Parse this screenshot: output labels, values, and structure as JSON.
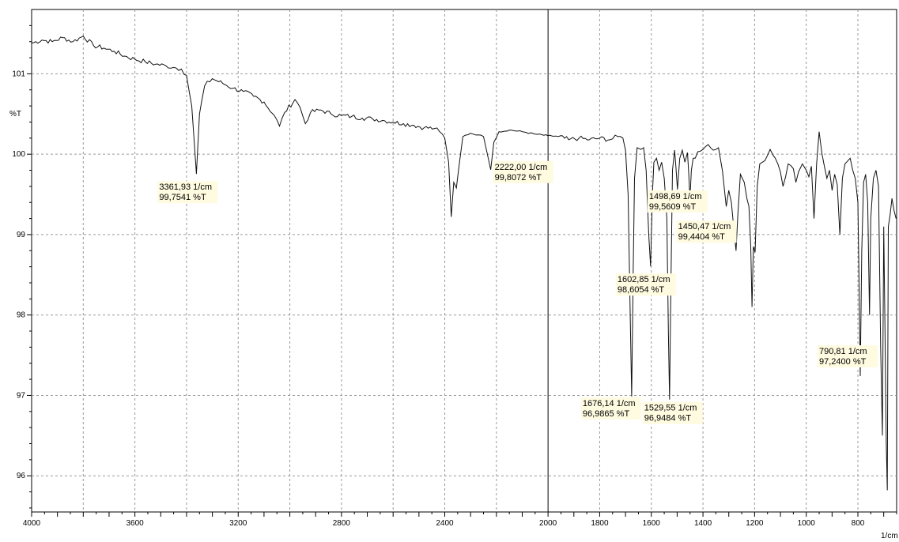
{
  "chart_data": {
    "type": "line",
    "title": "",
    "ylabel": "%T",
    "xlabel": "1/cm",
    "xlim": [
      4000,
      650
    ],
    "ylim": [
      95.55,
      101.8
    ],
    "x_ticks": [
      4000,
      3600,
      3200,
      2800,
      2400,
      2000,
      1600,
      1400,
      1200,
      1000,
      800
    ],
    "x_tick_labels": [
      "4000",
      "3600",
      "3200",
      "2800",
      "2400",
      "2000",
      "1600",
      "1400",
      "1200",
      "1000",
      "800"
    ],
    "x_tick_label_1800": "1800",
    "y_ticks": [
      96,
      97,
      98,
      99,
      100,
      101
    ],
    "y_tick_labels": [
      "96",
      "97",
      "98",
      "99",
      "100",
      "101"
    ],
    "grid": true,
    "cursor_x": 2000,
    "series": [
      {
        "points": [
          [
            4000,
            101.38
          ],
          [
            3960,
            101.42
          ],
          [
            3920,
            101.4
          ],
          [
            3880,
            101.45
          ],
          [
            3840,
            101.4
          ],
          [
            3800,
            101.47
          ],
          [
            3760,
            101.35
          ],
          [
            3720,
            101.32
          ],
          [
            3680,
            101.28
          ],
          [
            3640,
            101.22
          ],
          [
            3600,
            101.18
          ],
          [
            3560,
            101.15
          ],
          [
            3520,
            101.12
          ],
          [
            3480,
            101.1
          ],
          [
            3450,
            101.08
          ],
          [
            3420,
            101.06
          ],
          [
            3400,
            100.98
          ],
          [
            3380,
            100.6
          ],
          [
            3361.93,
            99.7541
          ],
          [
            3350,
            100.5
          ],
          [
            3330,
            100.85
          ],
          [
            3300,
            100.94
          ],
          [
            3260,
            100.88
          ],
          [
            3220,
            100.82
          ],
          [
            3180,
            100.78
          ],
          [
            3140,
            100.72
          ],
          [
            3100,
            100.65
          ],
          [
            3060,
            100.48
          ],
          [
            3040,
            100.35
          ],
          [
            3020,
            100.52
          ],
          [
            2980,
            100.68
          ],
          [
            2960,
            100.58
          ],
          [
            2940,
            100.38
          ],
          [
            2920,
            100.52
          ],
          [
            2880,
            100.55
          ],
          [
            2840,
            100.5
          ],
          [
            2800,
            100.48
          ],
          [
            2760,
            100.47
          ],
          [
            2720,
            100.45
          ],
          [
            2680,
            100.44
          ],
          [
            2640,
            100.42
          ],
          [
            2600,
            100.4
          ],
          [
            2560,
            100.38
          ],
          [
            2520,
            100.36
          ],
          [
            2480,
            100.33
          ],
          [
            2440,
            100.32
          ],
          [
            2420,
            100.28
          ],
          [
            2400,
            100.2
          ],
          [
            2385,
            99.9
          ],
          [
            2375,
            99.22
          ],
          [
            2365,
            99.65
          ],
          [
            2355,
            99.58
          ],
          [
            2345,
            99.85
          ],
          [
            2330,
            100.22
          ],
          [
            2300,
            100.26
          ],
          [
            2270,
            100.24
          ],
          [
            2250,
            100.22
          ],
          [
            2235,
            100.0
          ],
          [
            2222,
            99.8072
          ],
          [
            2210,
            100.15
          ],
          [
            2190,
            100.28
          ],
          [
            2150,
            100.3
          ],
          [
            2100,
            100.28
          ],
          [
            2050,
            100.25
          ],
          [
            2000,
            100.23
          ],
          [
            1960,
            100.22
          ],
          [
            1920,
            100.18
          ],
          [
            1880,
            100.2
          ],
          [
            1840,
            100.18
          ],
          [
            1800,
            100.2
          ],
          [
            1760,
            100.18
          ],
          [
            1730,
            100.22
          ],
          [
            1710,
            100.2
          ],
          [
            1700,
            100.05
          ],
          [
            1690,
            99.5
          ],
          [
            1683,
            98.2
          ],
          [
            1676.14,
            96.9865
          ],
          [
            1670,
            98.6
          ],
          [
            1665,
            99.7
          ],
          [
            1655,
            100.08
          ],
          [
            1640,
            100.06
          ],
          [
            1630,
            100.08
          ],
          [
            1620,
            99.8
          ],
          [
            1610,
            99.0
          ],
          [
            1602.85,
            98.6054
          ],
          [
            1596,
            99.5
          ],
          [
            1590,
            99.9
          ],
          [
            1580,
            99.95
          ],
          [
            1570,
            99.8
          ],
          [
            1560,
            99.9
          ],
          [
            1550,
            99.7
          ],
          [
            1540,
            99.2
          ],
          [
            1534,
            97.8
          ],
          [
            1529.55,
            96.9484
          ],
          [
            1525,
            98.2
          ],
          [
            1518,
            99.8
          ],
          [
            1510,
            100.05
          ],
          [
            1505,
            99.85
          ],
          [
            1498.69,
            99.5609
          ],
          [
            1490,
            99.95
          ],
          [
            1480,
            100.05
          ],
          [
            1470,
            99.9
          ],
          [
            1460,
            100.02
          ],
          [
            1455,
            99.75
          ],
          [
            1450.47,
            99.4404
          ],
          [
            1445,
            99.8
          ],
          [
            1438,
            99.95
          ],
          [
            1430,
            99.95
          ],
          [
            1420,
            100.03
          ],
          [
            1400,
            100.06
          ],
          [
            1380,
            100.12
          ],
          [
            1360,
            100.05
          ],
          [
            1340,
            100.08
          ],
          [
            1325,
            99.8
          ],
          [
            1310,
            99.35
          ],
          [
            1300,
            99.55
          ],
          [
            1290,
            99.4
          ],
          [
            1280,
            99.05
          ],
          [
            1272,
            98.8
          ],
          [
            1265,
            99.25
          ],
          [
            1255,
            99.75
          ],
          [
            1240,
            99.65
          ],
          [
            1230,
            99.45
          ],
          [
            1222,
            99.35
          ],
          [
            1215,
            98.85
          ],
          [
            1210,
            98.1
          ],
          [
            1205,
            98.85
          ],
          [
            1198,
            98.78
          ],
          [
            1190,
            99.6
          ],
          [
            1180,
            99.88
          ],
          [
            1160,
            99.92
          ],
          [
            1140,
            100.06
          ],
          [
            1120,
            99.95
          ],
          [
            1110,
            99.88
          ],
          [
            1100,
            99.78
          ],
          [
            1090,
            99.6
          ],
          [
            1080,
            99.72
          ],
          [
            1070,
            99.88
          ],
          [
            1050,
            99.82
          ],
          [
            1040,
            99.65
          ],
          [
            1030,
            99.78
          ],
          [
            1015,
            99.88
          ],
          [
            1000,
            99.8
          ],
          [
            990,
            99.72
          ],
          [
            980,
            99.85
          ],
          [
            970,
            99.2
          ],
          [
            960,
            99.88
          ],
          [
            950,
            100.28
          ],
          [
            940,
            100.02
          ],
          [
            930,
            99.85
          ],
          [
            920,
            99.7
          ],
          [
            910,
            99.8
          ],
          [
            900,
            99.55
          ],
          [
            890,
            99.75
          ],
          [
            880,
            99.62
          ],
          [
            870,
            99.0
          ],
          [
            860,
            99.7
          ],
          [
            850,
            99.88
          ],
          [
            830,
            99.95
          ],
          [
            820,
            99.8
          ],
          [
            810,
            99.7
          ],
          [
            800,
            99.4
          ],
          [
            795,
            98.3
          ],
          [
            790.81,
            97.24
          ],
          [
            785,
            98.8
          ],
          [
            778,
            99.65
          ],
          [
            770,
            99.75
          ],
          [
            762,
            99.4
          ],
          [
            755,
            98.0
          ],
          [
            750,
            99.2
          ],
          [
            740,
            99.7
          ],
          [
            730,
            99.8
          ],
          [
            720,
            99.6
          ],
          [
            712,
            97.6
          ],
          [
            705,
            96.5
          ],
          [
            700,
            99.1
          ],
          [
            695,
            97.8
          ],
          [
            690,
            96.4
          ],
          [
            686,
            95.82
          ],
          [
            682,
            99.1
          ],
          [
            675,
            99.25
          ],
          [
            668,
            99.45
          ],
          [
            660,
            99.3
          ],
          [
            652,
            99.2
          ]
        ]
      }
    ],
    "annotations": [
      {
        "x": 3361.93,
        "y": 99.7541,
        "line1": "3361,93 1/cm",
        "line2": "99,7541 %T"
      },
      {
        "x": 2222.0,
        "y": 99.8072,
        "line1": "2222,00 1/cm",
        "line2": "99,8072 %T"
      },
      {
        "x": 1498.69,
        "y": 99.5609,
        "line1": "1498,69 1/cm",
        "line2": "99,5609 %T"
      },
      {
        "x": 1602.85,
        "y": 98.6054,
        "line1": "1602,85 1/cm",
        "line2": "98,6054 %T"
      },
      {
        "x": 1450.47,
        "y": 99.4404,
        "line1": "1450,47 1/cm",
        "line2": "99,4404 %T"
      },
      {
        "x": 790.81,
        "y": 97.24,
        "line1": "790,81 1/cm",
        "line2": "97,2400 %T"
      },
      {
        "x": 1676.14,
        "y": 96.9865,
        "line1": "1676,14 1/cm",
        "line2": "96,9865 %T"
      },
      {
        "x": 1529.55,
        "y": 96.9484,
        "line1": "1529,55 1/cm",
        "line2": "96,9484 %T"
      }
    ]
  }
}
